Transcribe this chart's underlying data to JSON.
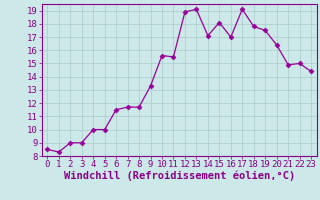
{
  "x": [
    0,
    1,
    2,
    3,
    4,
    5,
    6,
    7,
    8,
    9,
    10,
    11,
    12,
    13,
    14,
    15,
    16,
    17,
    18,
    19,
    20,
    21,
    22,
    23
  ],
  "y": [
    8.5,
    8.3,
    9.0,
    9.0,
    10.0,
    10.0,
    11.5,
    11.7,
    11.7,
    13.3,
    15.6,
    15.5,
    18.9,
    19.1,
    17.1,
    18.1,
    17.0,
    19.1,
    17.8,
    17.5,
    16.4,
    14.9,
    15.0,
    14.4
  ],
  "line_color": "#990099",
  "marker": "D",
  "marker_size": 2.5,
  "background_color": "#cce8e8",
  "grid_color": "#aacccc",
  "xlabel": "Windchill (Refroidissement éolien,°C)",
  "ylim": [
    8,
    19.5
  ],
  "xlim": [
    -0.5,
    23.5
  ],
  "yticks": [
    8,
    9,
    10,
    11,
    12,
    13,
    14,
    15,
    16,
    17,
    18,
    19
  ],
  "xticks": [
    0,
    1,
    2,
    3,
    4,
    5,
    6,
    7,
    8,
    9,
    10,
    11,
    12,
    13,
    14,
    15,
    16,
    17,
    18,
    19,
    20,
    21,
    22,
    23
  ],
  "tick_color": "#880088",
  "label_color": "#880088",
  "font_size": 6.5,
  "xlabel_fontsize": 7.5
}
